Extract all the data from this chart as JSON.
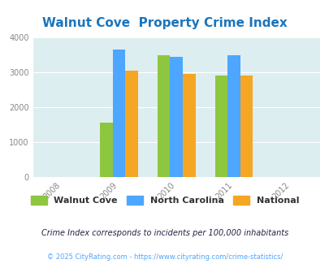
{
  "title": "Walnut Cove  Property Crime Index",
  "years": [
    2008,
    2009,
    2010,
    2011,
    2012
  ],
  "x_tick_labels": [
    "2008",
    "2009",
    "2010",
    "2011",
    "2012"
  ],
  "walnut_cove": [
    null,
    1560,
    3500,
    2920,
    null
  ],
  "north_carolina": [
    null,
    3660,
    3450,
    3500,
    null
  ],
  "national": [
    null,
    3050,
    2950,
    2920,
    null
  ],
  "bar_width": 0.22,
  "colors": {
    "walnut_cove": "#8dc63f",
    "north_carolina": "#4da6ff",
    "national": "#f5a623"
  },
  "ylim": [
    0,
    4000
  ],
  "yticks": [
    0,
    1000,
    2000,
    3000,
    4000
  ],
  "plot_bg": "#ddeef0",
  "title_color": "#1a75bc",
  "title_fontsize": 11,
  "legend_labels": [
    "Walnut Cove",
    "North Carolina",
    "National"
  ],
  "legend_fontsize": 8,
  "footnote1": "Crime Index corresponds to incidents per 100,000 inhabitants",
  "footnote2": "© 2025 CityRating.com - https://www.cityrating.com/crime-statistics/",
  "footnote1_color": "#222244",
  "footnote2_color": "#4da6ff",
  "footnote1_fontsize": 7.0,
  "footnote2_fontsize": 6.0
}
